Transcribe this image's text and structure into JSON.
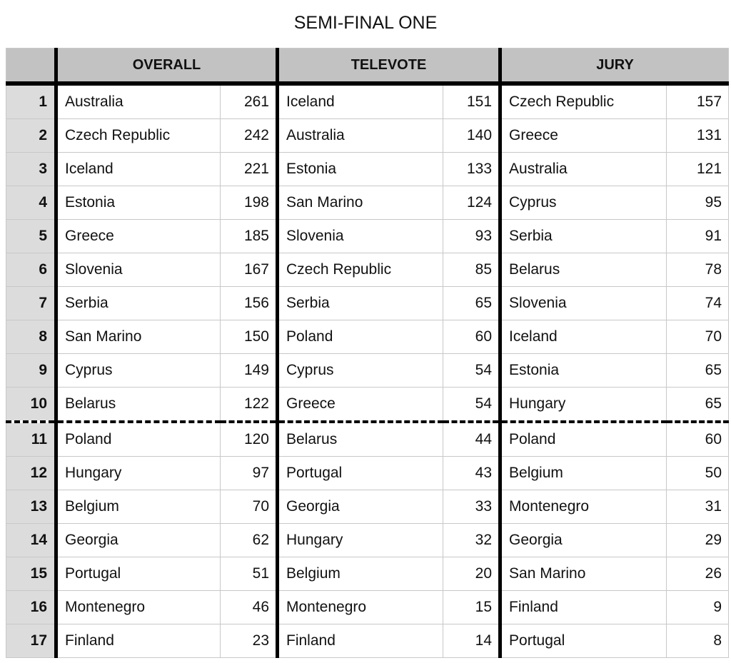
{
  "title": "SEMI-FINAL ONE",
  "headers": {
    "overall": "OVERALL",
    "televote": "TELEVOTE",
    "jury": "JURY"
  },
  "rows": [
    {
      "rank": "1",
      "overall": [
        "Australia",
        "261"
      ],
      "televote": [
        "Iceland",
        "151"
      ],
      "jury": [
        "Czech Republic",
        "157"
      ]
    },
    {
      "rank": "2",
      "overall": [
        "Czech Republic",
        "242"
      ],
      "televote": [
        "Australia",
        "140"
      ],
      "jury": [
        "Greece",
        "131"
      ]
    },
    {
      "rank": "3",
      "overall": [
        "Iceland",
        "221"
      ],
      "televote": [
        "Estonia",
        "133"
      ],
      "jury": [
        "Australia",
        "121"
      ]
    },
    {
      "rank": "4",
      "overall": [
        "Estonia",
        "198"
      ],
      "televote": [
        "San Marino",
        "124"
      ],
      "jury": [
        "Cyprus",
        "95"
      ]
    },
    {
      "rank": "5",
      "overall": [
        "Greece",
        "185"
      ],
      "televote": [
        "Slovenia",
        "93"
      ],
      "jury": [
        "Serbia",
        "91"
      ]
    },
    {
      "rank": "6",
      "overall": [
        "Slovenia",
        "167"
      ],
      "televote": [
        "Czech Republic",
        "85"
      ],
      "jury": [
        "Belarus",
        "78"
      ]
    },
    {
      "rank": "7",
      "overall": [
        "Serbia",
        "156"
      ],
      "televote": [
        "Serbia",
        "65"
      ],
      "jury": [
        "Slovenia",
        "74"
      ]
    },
    {
      "rank": "8",
      "overall": [
        "San Marino",
        "150"
      ],
      "televote": [
        "Poland",
        "60"
      ],
      "jury": [
        "Iceland",
        "70"
      ]
    },
    {
      "rank": "9",
      "overall": [
        "Cyprus",
        "149"
      ],
      "televote": [
        "Cyprus",
        "54"
      ],
      "jury": [
        "Estonia",
        "65"
      ]
    },
    {
      "rank": "10",
      "overall": [
        "Belarus",
        "122"
      ],
      "televote": [
        "Greece",
        "54"
      ],
      "jury": [
        "Hungary",
        "65"
      ]
    },
    {
      "rank": "11",
      "overall": [
        "Poland",
        "120"
      ],
      "televote": [
        "Belarus",
        "44"
      ],
      "jury": [
        "Poland",
        "60"
      ]
    },
    {
      "rank": "12",
      "overall": [
        "Hungary",
        "97"
      ],
      "televote": [
        "Portugal",
        "43"
      ],
      "jury": [
        "Belgium",
        "50"
      ]
    },
    {
      "rank": "13",
      "overall": [
        "Belgium",
        "70"
      ],
      "televote": [
        "Georgia",
        "33"
      ],
      "jury": [
        "Montenegro",
        "31"
      ]
    },
    {
      "rank": "14",
      "overall": [
        "Georgia",
        "62"
      ],
      "televote": [
        "Hungary",
        "32"
      ],
      "jury": [
        "Georgia",
        "29"
      ]
    },
    {
      "rank": "15",
      "overall": [
        "Portugal",
        "51"
      ],
      "televote": [
        "Belgium",
        "20"
      ],
      "jury": [
        "San Marino",
        "26"
      ]
    },
    {
      "rank": "16",
      "overall": [
        "Montenegro",
        "46"
      ],
      "televote": [
        "Montenegro",
        "15"
      ],
      "jury": [
        "Finland",
        "9"
      ]
    },
    {
      "rank": "17",
      "overall": [
        "Finland",
        "23"
      ],
      "televote": [
        "Finland",
        "14"
      ],
      "jury": [
        "Portugal",
        "8"
      ]
    }
  ]
}
